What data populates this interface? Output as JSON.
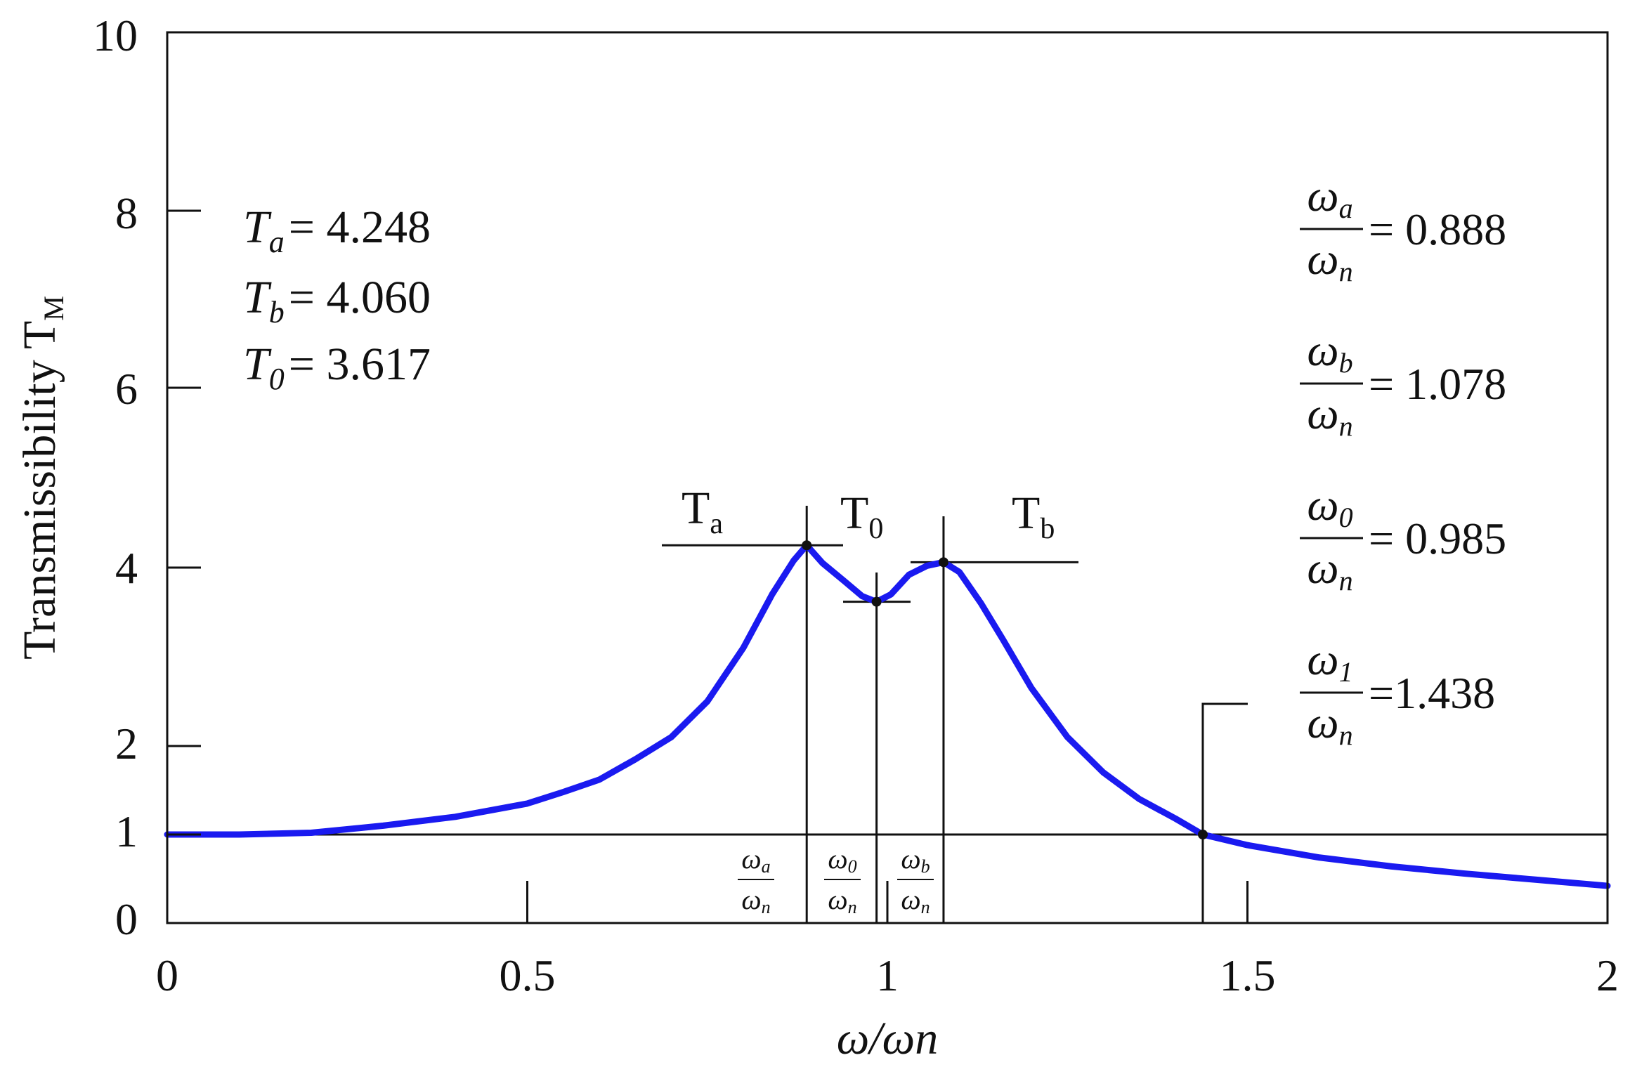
{
  "chart_data": {
    "type": "line",
    "title": "",
    "xlabel": "ω/ωn",
    "ylabel": "Transmissibility T",
    "ylabel_sub": "M",
    "xlim": [
      0,
      2
    ],
    "ylim": [
      0,
      10
    ],
    "y_scale": "custom-nonlinear (0–4 expanded, 4–10 compressed)",
    "grid": false,
    "x_ticks": [
      "0",
      "0.5",
      "1",
      "1.5",
      "2"
    ],
    "y_ticks": [
      "0",
      "1",
      "2",
      "4",
      "6",
      "8",
      "10"
    ],
    "series": [
      {
        "color": "#1a1af0",
        "x": [
          0,
          0.1,
          0.2,
          0.3,
          0.4,
          0.5,
          0.55,
          0.6,
          0.65,
          0.7,
          0.75,
          0.8,
          0.84,
          0.87,
          0.888,
          0.91,
          0.94,
          0.965,
          0.985,
          1.005,
          1.03,
          1.055,
          1.078,
          1.1,
          1.13,
          1.16,
          1.2,
          1.25,
          1.3,
          1.35,
          1.4,
          1.438,
          1.5,
          1.6,
          1.7,
          1.8,
          1.9,
          2.0
        ],
        "y": [
          1.0,
          1.0,
          1.02,
          1.1,
          1.2,
          1.35,
          1.48,
          1.62,
          1.85,
          2.1,
          2.5,
          3.1,
          3.7,
          4.08,
          4.248,
          4.05,
          3.85,
          3.68,
          3.617,
          3.7,
          3.92,
          4.02,
          4.06,
          3.95,
          3.6,
          3.2,
          2.65,
          2.1,
          1.7,
          1.4,
          1.18,
          1.0,
          0.88,
          0.74,
          0.64,
          0.56,
          0.49,
          0.42
        ]
      }
    ],
    "markers": [
      {
        "x": 0.888,
        "y": 4.248
      },
      {
        "x": 0.985,
        "y": 3.617
      },
      {
        "x": 1.078,
        "y": 4.06
      },
      {
        "x": 1.438,
        "y": 1.0
      }
    ],
    "reference_line_y": 1,
    "peak_labels": [
      {
        "main": "T",
        "sub": "a"
      },
      {
        "main": "T",
        "sub": "0"
      },
      {
        "main": "T",
        "sub": "b"
      }
    ],
    "values_box": [
      {
        "main": "T",
        "sub": "a",
        "eq": "= 4.248"
      },
      {
        "main": "T",
        "sub": "b",
        "eq": "= 4.060"
      },
      {
        "main": "T",
        "sub": "0",
        "eq": "= 3.617"
      }
    ],
    "ratio_box": [
      {
        "num": "ω",
        "num_sub": "a",
        "den": "ω",
        "den_sub": "n",
        "eq": "= 0.888"
      },
      {
        "num": "ω",
        "num_sub": "b",
        "den": "ω",
        "den_sub": "n",
        "eq": "= 1.078"
      },
      {
        "num": "ω",
        "num_sub": "0",
        "den": "ω",
        "den_sub": "n",
        "eq": "= 0.985"
      },
      {
        "num": "ω",
        "num_sub": "1",
        "den": "ω",
        "den_sub": "n",
        "eq": "=1.438"
      }
    ],
    "axis_fractions": [
      {
        "num": "ω",
        "num_sub": "a",
        "den": "ω",
        "den_sub": "n"
      },
      {
        "num": "ω",
        "num_sub": "0",
        "den": "ω",
        "den_sub": "n"
      },
      {
        "num": "ω",
        "num_sub": "b",
        "den": "ω",
        "den_sub": "n"
      }
    ]
  }
}
